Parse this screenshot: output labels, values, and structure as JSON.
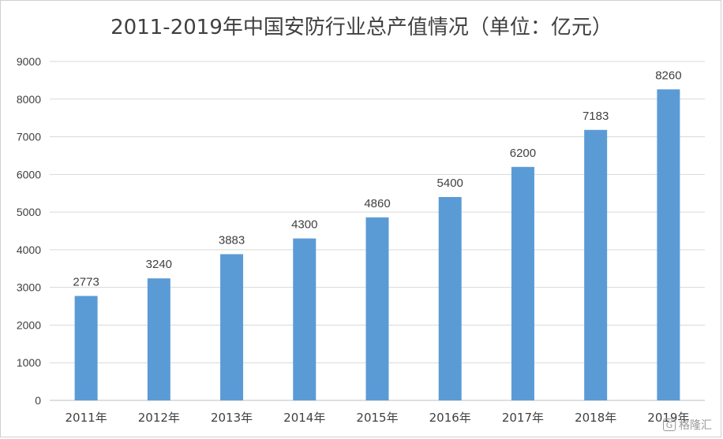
{
  "chart_data": {
    "type": "bar",
    "title": "2011-2019年中国安防行业总产值情况（单位：亿元）",
    "categories": [
      "2011年",
      "2012年",
      "2013年",
      "2014年",
      "2015年",
      "2016年",
      "2017年",
      "2018年",
      "2019年"
    ],
    "values": [
      2773,
      3240,
      3883,
      4300,
      4860,
      5400,
      6200,
      7183,
      8260
    ],
    "ylim": [
      0,
      9000
    ],
    "yticks": [
      0,
      1000,
      2000,
      3000,
      4000,
      5000,
      6000,
      7000,
      8000,
      9000
    ],
    "grid": true,
    "legend": "none",
    "bar_color": "#5b9bd5",
    "grid_color": "#d9d9d9"
  },
  "watermark": {
    "text": "格隆汇",
    "logo": "G"
  }
}
